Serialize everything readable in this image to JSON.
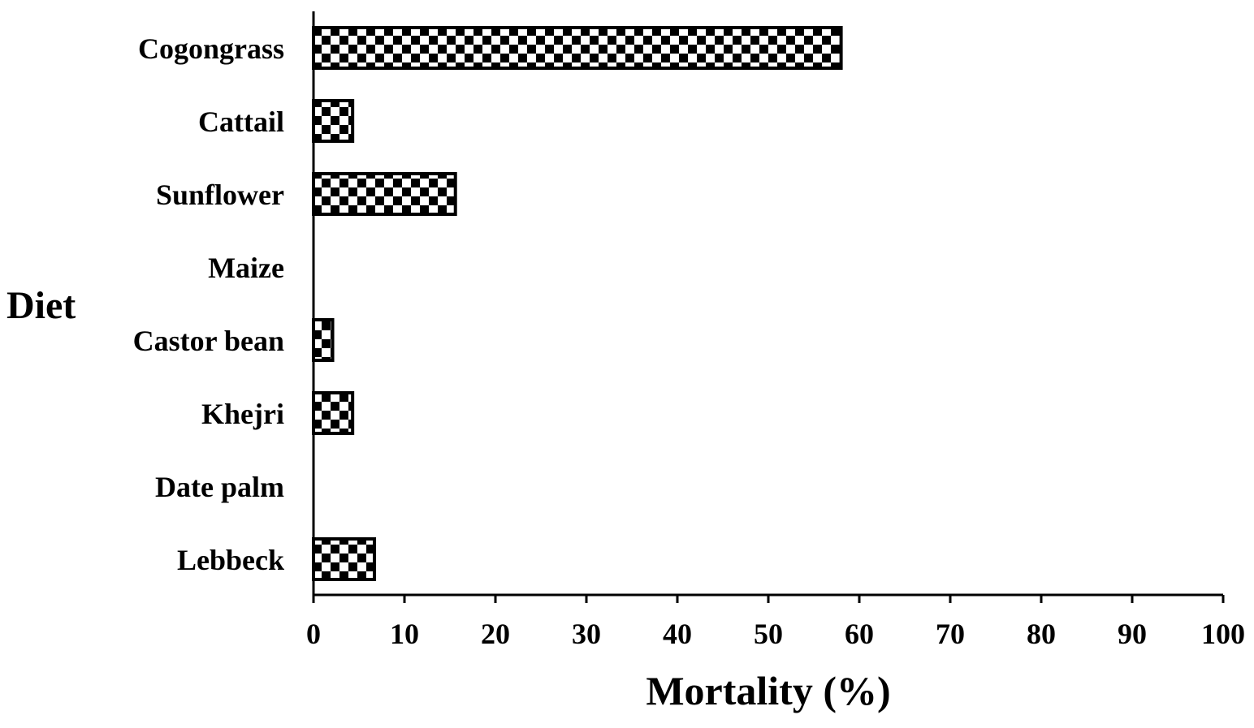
{
  "chart_data": {
    "type": "bar",
    "orientation": "horizontal",
    "categories": [
      "Cogongrass",
      "Cattail",
      "Sunflower",
      "Maize",
      "Castor bean",
      "Khejri",
      "Date palm",
      "Lebbeck"
    ],
    "values": [
      58,
      4.3,
      15.6,
      0,
      2.1,
      4.3,
      0,
      6.7
    ],
    "xlabel": "Mortality (%)",
    "ylabel": "Diet",
    "xlim": [
      0,
      100
    ],
    "xticks": [
      "0",
      "10",
      "20",
      "30",
      "40",
      "50",
      "60",
      "70",
      "80",
      "90",
      "100"
    ],
    "bar_pattern": "checkerboard",
    "colors": {
      "bar_fill": "#000000",
      "bar_alt": "#ffffff",
      "axis": "#000000"
    },
    "grid": false,
    "legend": "none"
  }
}
